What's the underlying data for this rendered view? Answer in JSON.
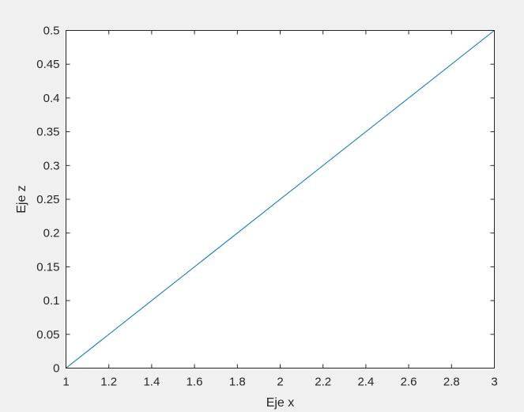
{
  "chart_data": {
    "type": "line",
    "title": "",
    "xlabel": "Eje x",
    "ylabel": "Eje z",
    "xlim": [
      1,
      3
    ],
    "ylim": [
      0,
      0.5
    ],
    "xticks": [
      "1",
      "1.2",
      "1.4",
      "1.6",
      "1.8",
      "2",
      "2.2",
      "2.4",
      "2.6",
      "2.8",
      "3"
    ],
    "yticks": [
      "0",
      "0.05",
      "0.1",
      "0.15",
      "0.2",
      "0.25",
      "0.3",
      "0.35",
      "0.4",
      "0.45",
      "0.5"
    ],
    "grid": false,
    "series": [
      {
        "x": [
          1,
          3
        ],
        "y": [
          0,
          0.5
        ],
        "color": "#0072bd"
      }
    ],
    "colors": {
      "background": "#f0f0f0",
      "axes": "#ffffff",
      "axis_line": "#262626"
    }
  }
}
